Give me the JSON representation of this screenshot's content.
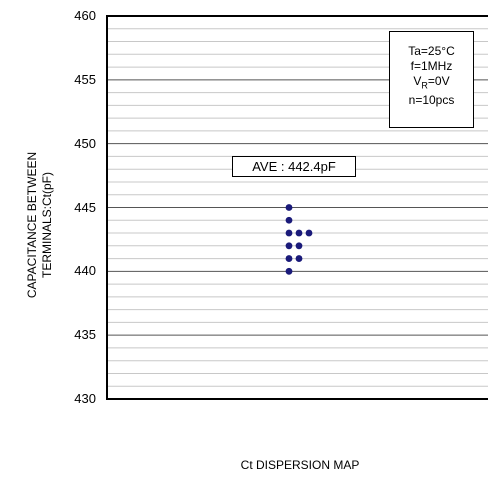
{
  "chart_data": {
    "type": "scatter",
    "title": "",
    "xlabel": "Ct DISPERSION MAP",
    "ylabel_lines": [
      "CAPACITANCE BETWEEN",
      "TERMINALS:Ct(pF)"
    ],
    "ylim": [
      430,
      460
    ],
    "yticks": [
      430,
      435,
      440,
      445,
      450,
      455,
      460
    ],
    "minor_grid_step": 1,
    "grid": true,
    "marker_color": "#1a1a7a",
    "average_label": "AVE : 442.4pF",
    "conditions": {
      "ta": "Ta=25°C",
      "f": "f=1MHz",
      "vr_main": "V",
      "vr_sub": "R",
      "vr_value": "=0V",
      "n": "n=10pcs"
    },
    "points": [
      {
        "col": 0,
        "y": 445
      },
      {
        "col": 0,
        "y": 444
      },
      {
        "col": 0,
        "y": 443
      },
      {
        "col": 1,
        "y": 443
      },
      {
        "col": 2,
        "y": 443
      },
      {
        "col": 0,
        "y": 442
      },
      {
        "col": 1,
        "y": 442
      },
      {
        "col": 0,
        "y": 441
      },
      {
        "col": 1,
        "y": 441
      },
      {
        "col": 0,
        "y": 440
      }
    ]
  }
}
